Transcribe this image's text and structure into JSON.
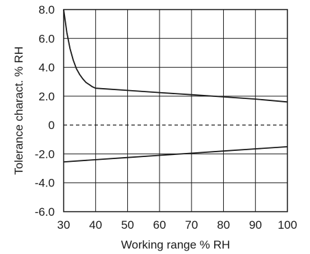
{
  "chart_data": {
    "type": "line",
    "xlabel": "Working range % RH",
    "ylabel": "Tolerance charact. % RH",
    "xlim": [
      30,
      100
    ],
    "ylim": [
      -6,
      8
    ],
    "grid": true,
    "x_ticks": [
      30,
      40,
      50,
      60,
      70,
      80,
      90,
      100
    ],
    "x_tick_labels": [
      "30",
      "40",
      "50",
      "60",
      "70",
      "80",
      "90",
      "100"
    ],
    "y_ticks": [
      8,
      6,
      4,
      2,
      0,
      -2,
      -4,
      -6
    ],
    "y_tick_labels": [
      "8.0",
      "6.0",
      "4.0",
      "2.0",
      "0",
      "-2.0",
      "-4.0",
      "-6.0"
    ],
    "zero_line": "dashed",
    "series": [
      {
        "style": "solid",
        "x": [
          30,
          31,
          32,
          33,
          34,
          35,
          36,
          37,
          38,
          39,
          40,
          50,
          60,
          70,
          80,
          90,
          100
        ],
        "y": [
          8.0,
          6.4,
          5.3,
          4.5,
          3.9,
          3.5,
          3.2,
          2.95,
          2.8,
          2.65,
          2.55,
          2.4,
          2.25,
          2.1,
          1.95,
          1.8,
          1.6
        ]
      },
      {
        "style": "solid",
        "x": [
          30,
          40,
          50,
          60,
          70,
          80,
          90,
          100
        ],
        "y": [
          -2.55,
          -2.4,
          -2.25,
          -2.1,
          -1.95,
          -1.8,
          -1.65,
          -1.5
        ]
      }
    ]
  }
}
